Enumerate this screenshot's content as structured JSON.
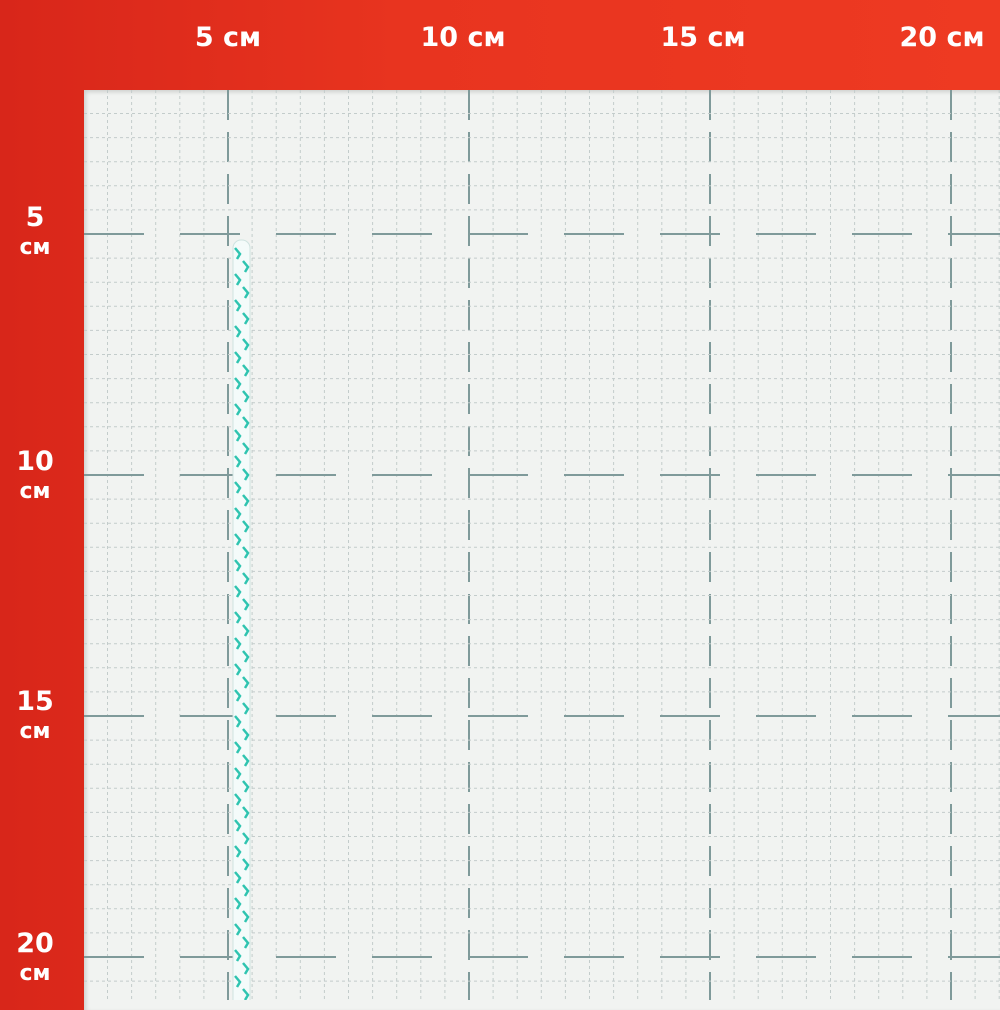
{
  "ruler": {
    "top_labels": [
      "5 см",
      "10 см",
      "15 см",
      "20 см"
    ],
    "left_labels": [
      {
        "number": "5",
        "unit": "см"
      },
      {
        "number": "10",
        "unit": "см"
      },
      {
        "number": "15",
        "unit": "см"
      },
      {
        "number": "20",
        "unit": "см"
      }
    ]
  },
  "colors": {
    "frame": "#e8341f",
    "board": "#f1f3f1",
    "grid": "#7f9a9a",
    "cord_strand": "#2fc4b0"
  }
}
